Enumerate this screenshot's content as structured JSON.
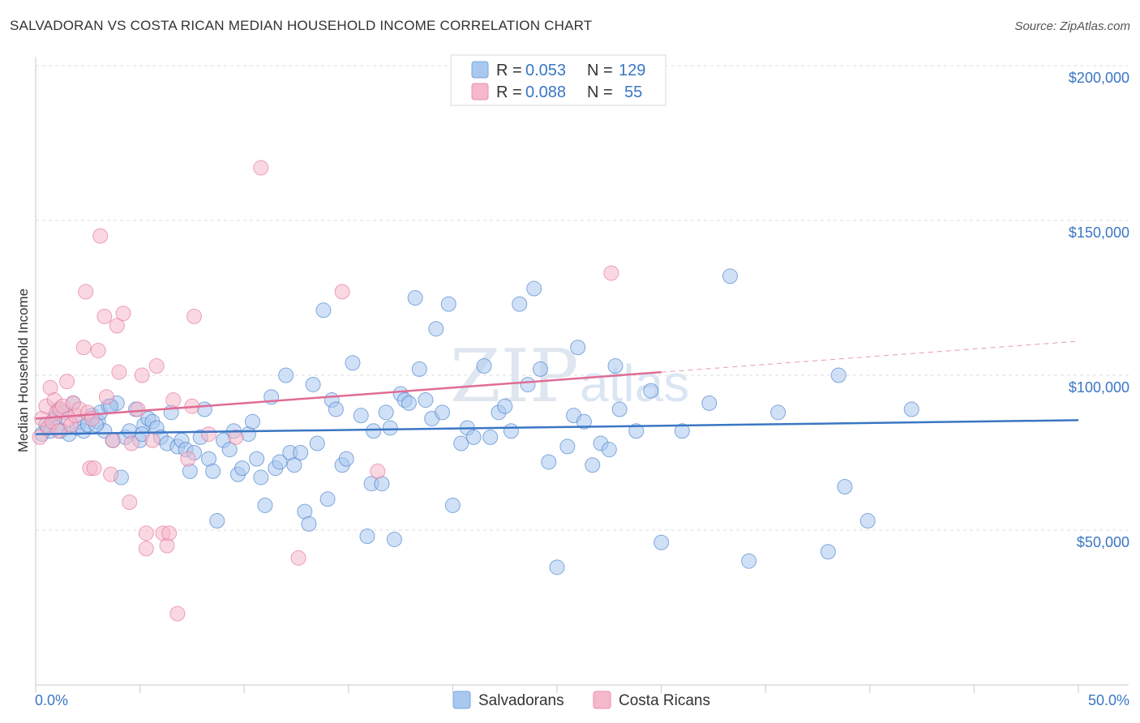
{
  "header": {
    "title": "SALVADORAN VS COSTA RICAN MEDIAN HOUSEHOLD INCOME CORRELATION CHART",
    "source": "Source: ZipAtlas.com"
  },
  "legend_box": {
    "rows": [
      {
        "r_label": "R = ",
        "r_value": "0.053",
        "n_label": "N = ",
        "n_value": "129",
        "color": "#a9c8f0"
      },
      {
        "r_label": "R = ",
        "r_value": "0.088",
        "n_label": "N = ",
        "n_value": "55",
        "color": "#f6b8cb"
      }
    ]
  },
  "bottom_legend": {
    "items": [
      {
        "label": "Salvadorans",
        "color": "#a9c8f0"
      },
      {
        "label": "Costa Ricans",
        "color": "#f6b8cb"
      }
    ]
  },
  "watermark": {
    "zip": "ZIP",
    "atlas": "atlas"
  },
  "chart_data": {
    "type": "scatter",
    "title": "SALVADORAN VS COSTA RICAN MEDIAN HOUSEHOLD INCOME CORRELATION CHART",
    "xlabel": "",
    "ylabel": "Median Household Income",
    "xlim": [
      0,
      50
    ],
    "ylim": [
      0,
      210000
    ],
    "x_tick_labels": [
      "0.0%",
      "50.0%"
    ],
    "y_ticks": [
      50000,
      100000,
      150000,
      200000
    ],
    "y_tick_labels": [
      "$50,000",
      "$100,000",
      "$150,000",
      "$200,000"
    ],
    "grid": true,
    "legend_position": "top-center",
    "series": [
      {
        "name": "Salvadorans",
        "color": "#3a76c4",
        "fill": "#a9c8f0",
        "trend": {
          "x": [
            0,
            50
          ],
          "y": [
            81000,
            85500
          ],
          "style": "solid"
        },
        "points": [
          [
            0.3,
            81000
          ],
          [
            0.5,
            84000
          ],
          [
            0.7,
            82000
          ],
          [
            0.9,
            86000
          ],
          [
            1.0,
            83000
          ],
          [
            1.1,
            89000
          ],
          [
            1.2,
            82000
          ],
          [
            1.4,
            88000
          ],
          [
            1.6,
            81000
          ],
          [
            1.8,
            91000
          ],
          [
            2.0,
            83000
          ],
          [
            2.1,
            85000
          ],
          [
            2.3,
            82000
          ],
          [
            2.5,
            84000
          ],
          [
            2.7,
            87000
          ],
          [
            3.0,
            85000
          ],
          [
            3.1,
            88000
          ],
          [
            3.3,
            82000
          ],
          [
            3.5,
            90000
          ],
          [
            3.7,
            79000
          ],
          [
            3.9,
            91000
          ],
          [
            4.1,
            67000
          ],
          [
            4.3,
            80000
          ],
          [
            4.5,
            82000
          ],
          [
            4.8,
            89000
          ],
          [
            5.0,
            79000
          ],
          [
            5.2,
            84000
          ],
          [
            5.4,
            86000
          ],
          [
            5.6,
            85000
          ],
          [
            5.8,
            83000
          ],
          [
            6.0,
            80000
          ],
          [
            6.3,
            78000
          ],
          [
            6.5,
            88000
          ],
          [
            6.8,
            77000
          ],
          [
            7.0,
            79000
          ],
          [
            7.2,
            76000
          ],
          [
            7.4,
            69000
          ],
          [
            7.6,
            75000
          ],
          [
            7.9,
            80000
          ],
          [
            8.1,
            89000
          ],
          [
            8.3,
            73000
          ],
          [
            8.5,
            69000
          ],
          [
            8.7,
            53000
          ],
          [
            9.0,
            79000
          ],
          [
            9.3,
            76000
          ],
          [
            9.5,
            82000
          ],
          [
            9.7,
            68000
          ],
          [
            9.9,
            70000
          ],
          [
            10.2,
            81000
          ],
          [
            10.4,
            85000
          ],
          [
            10.6,
            73000
          ],
          [
            10.8,
            67000
          ],
          [
            11.0,
            58000
          ],
          [
            11.3,
            93000
          ],
          [
            11.5,
            70000
          ],
          [
            11.7,
            72000
          ],
          [
            12.0,
            100000
          ],
          [
            12.2,
            75000
          ],
          [
            12.4,
            71000
          ],
          [
            12.7,
            75000
          ],
          [
            12.9,
            56000
          ],
          [
            13.1,
            52000
          ],
          [
            13.3,
            97000
          ],
          [
            13.5,
            78000
          ],
          [
            13.8,
            121000
          ],
          [
            14.0,
            60000
          ],
          [
            14.2,
            92000
          ],
          [
            14.4,
            89000
          ],
          [
            14.7,
            71000
          ],
          [
            14.9,
            73000
          ],
          [
            15.2,
            104000
          ],
          [
            15.6,
            87000
          ],
          [
            15.9,
            48000
          ],
          [
            16.1,
            65000
          ],
          [
            16.2,
            82000
          ],
          [
            16.6,
            65000
          ],
          [
            16.8,
            88000
          ],
          [
            17.0,
            83000
          ],
          [
            17.2,
            47000
          ],
          [
            17.5,
            94000
          ],
          [
            17.7,
            92000
          ],
          [
            17.9,
            91000
          ],
          [
            18.2,
            125000
          ],
          [
            18.4,
            102000
          ],
          [
            18.7,
            92000
          ],
          [
            19.0,
            86000
          ],
          [
            19.2,
            115000
          ],
          [
            19.5,
            88000
          ],
          [
            19.8,
            123000
          ],
          [
            20.0,
            58000
          ],
          [
            20.4,
            78000
          ],
          [
            20.7,
            83000
          ],
          [
            21.0,
            80000
          ],
          [
            21.5,
            103000
          ],
          [
            21.8,
            80000
          ],
          [
            22.2,
            88000
          ],
          [
            22.5,
            90000
          ],
          [
            22.8,
            82000
          ],
          [
            23.2,
            123000
          ],
          [
            23.6,
            97000
          ],
          [
            23.9,
            128000
          ],
          [
            24.2,
            102000
          ],
          [
            24.6,
            72000
          ],
          [
            25.0,
            38000
          ],
          [
            25.5,
            77000
          ],
          [
            25.8,
            87000
          ],
          [
            26.0,
            109000
          ],
          [
            26.3,
            85000
          ],
          [
            26.7,
            71000
          ],
          [
            27.1,
            78000
          ],
          [
            27.5,
            76000
          ],
          [
            27.8,
            103000
          ],
          [
            28.0,
            89000
          ],
          [
            28.8,
            82000
          ],
          [
            29.5,
            95000
          ],
          [
            30.0,
            46000
          ],
          [
            31.0,
            82000
          ],
          [
            32.3,
            91000
          ],
          [
            33.3,
            132000
          ],
          [
            34.2,
            40000
          ],
          [
            35.6,
            88000
          ],
          [
            38.0,
            43000
          ],
          [
            38.5,
            100000
          ],
          [
            38.8,
            64000
          ],
          [
            39.9,
            53000
          ],
          [
            42.0,
            89000
          ],
          [
            5.1,
            81000
          ],
          [
            3.6,
            90000
          ],
          [
            2.9,
            84000
          ]
        ]
      },
      {
        "name": "Costa Ricans",
        "color": "#e06c95",
        "fill": "#f6b8cb",
        "trend": {
          "x": [
            0,
            30
          ],
          "y": [
            86000,
            101000
          ],
          "style": "solid",
          "extension": {
            "x": [
              30,
              50
            ],
            "y": [
              101000,
              111000
            ],
            "style": "dashed"
          }
        },
        "points": [
          [
            0.2,
            80000
          ],
          [
            0.3,
            86000
          ],
          [
            0.5,
            90000
          ],
          [
            0.6,
            83000
          ],
          [
            0.7,
            96000
          ],
          [
            0.8,
            85000
          ],
          [
            0.9,
            92000
          ],
          [
            1.0,
            88000
          ],
          [
            1.1,
            82000
          ],
          [
            1.2,
            89000
          ],
          [
            1.3,
            90000
          ],
          [
            1.5,
            98000
          ],
          [
            1.6,
            86000
          ],
          [
            1.7,
            84000
          ],
          [
            1.8,
            91000
          ],
          [
            1.9,
            87000
          ],
          [
            2.1,
            89000
          ],
          [
            2.3,
            109000
          ],
          [
            2.4,
            127000
          ],
          [
            2.5,
            88000
          ],
          [
            2.6,
            70000
          ],
          [
            2.7,
            86000
          ],
          [
            2.8,
            70000
          ],
          [
            3.0,
            108000
          ],
          [
            3.1,
            145000
          ],
          [
            3.3,
            119000
          ],
          [
            3.4,
            93000
          ],
          [
            3.6,
            68000
          ],
          [
            3.7,
            79000
          ],
          [
            3.9,
            116000
          ],
          [
            4.0,
            101000
          ],
          [
            4.2,
            120000
          ],
          [
            4.5,
            59000
          ],
          [
            4.6,
            78000
          ],
          [
            4.9,
            89000
          ],
          [
            5.1,
            100000
          ],
          [
            5.3,
            49000
          ],
          [
            5.3,
            44000
          ],
          [
            5.6,
            79000
          ],
          [
            5.8,
            103000
          ],
          [
            6.1,
            49000
          ],
          [
            6.3,
            45000
          ],
          [
            6.4,
            49000
          ],
          [
            6.6,
            92000
          ],
          [
            6.8,
            23000
          ],
          [
            7.3,
            73000
          ],
          [
            7.5,
            90000
          ],
          [
            7.6,
            119000
          ],
          [
            8.3,
            81000
          ],
          [
            9.6,
            80000
          ],
          [
            10.8,
            167000
          ],
          [
            12.6,
            41000
          ],
          [
            14.7,
            127000
          ],
          [
            16.4,
            69000
          ],
          [
            27.6,
            133000
          ]
        ]
      }
    ]
  }
}
